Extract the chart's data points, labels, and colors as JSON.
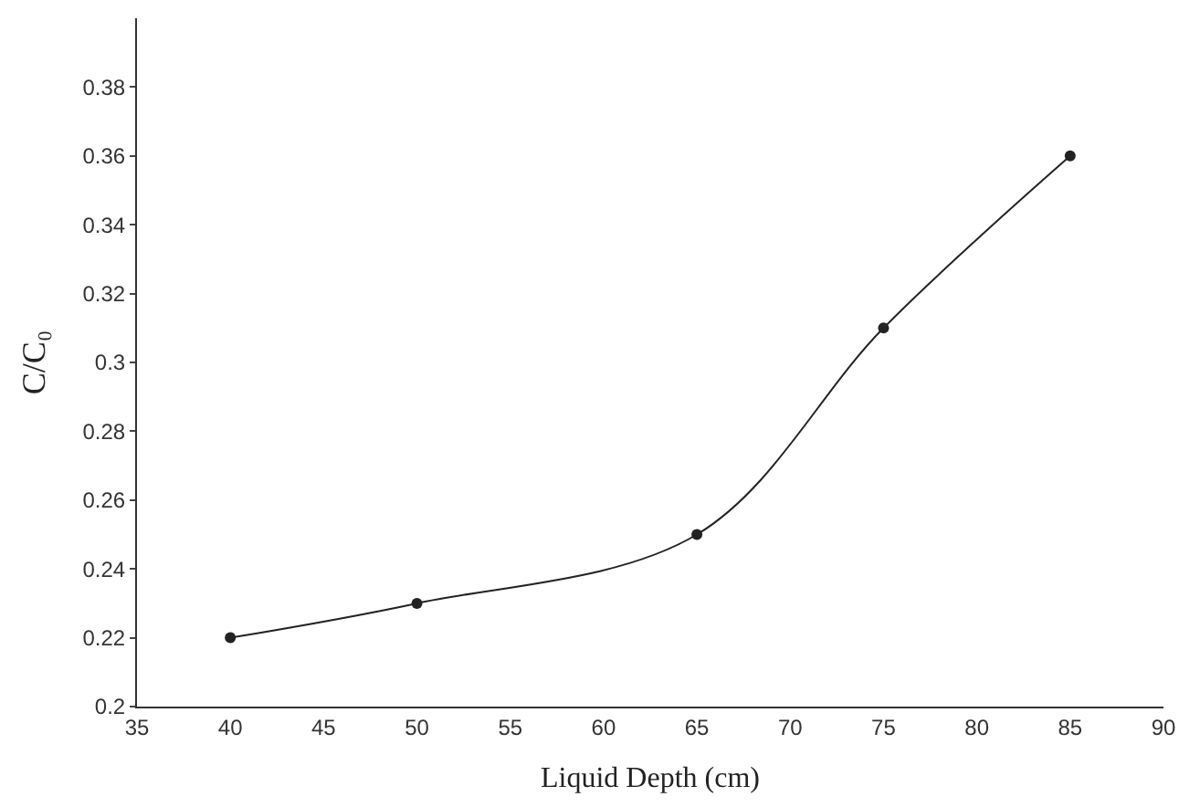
{
  "chart_data": {
    "type": "line",
    "xlabel": "Liquid Depth (cm)",
    "ylabel": "C/C₀",
    "x": [
      40,
      50,
      65,
      75,
      85
    ],
    "series": [
      {
        "color": "#222222",
        "values": [
          0.22,
          0.23,
          0.25,
          0.31,
          0.36
        ]
      }
    ],
    "xlim": [
      35,
      90
    ],
    "xticks": [
      35,
      40,
      45,
      50,
      55,
      60,
      65,
      70,
      75,
      80,
      85,
      90
    ],
    "ylim": [
      0.2,
      0.4
    ],
    "yticks": [
      0.2,
      0.22,
      0.24,
      0.26,
      0.28,
      0.3,
      0.32,
      0.34,
      0.36,
      0.38
    ],
    "marker": "circle",
    "line_style": "solid"
  }
}
